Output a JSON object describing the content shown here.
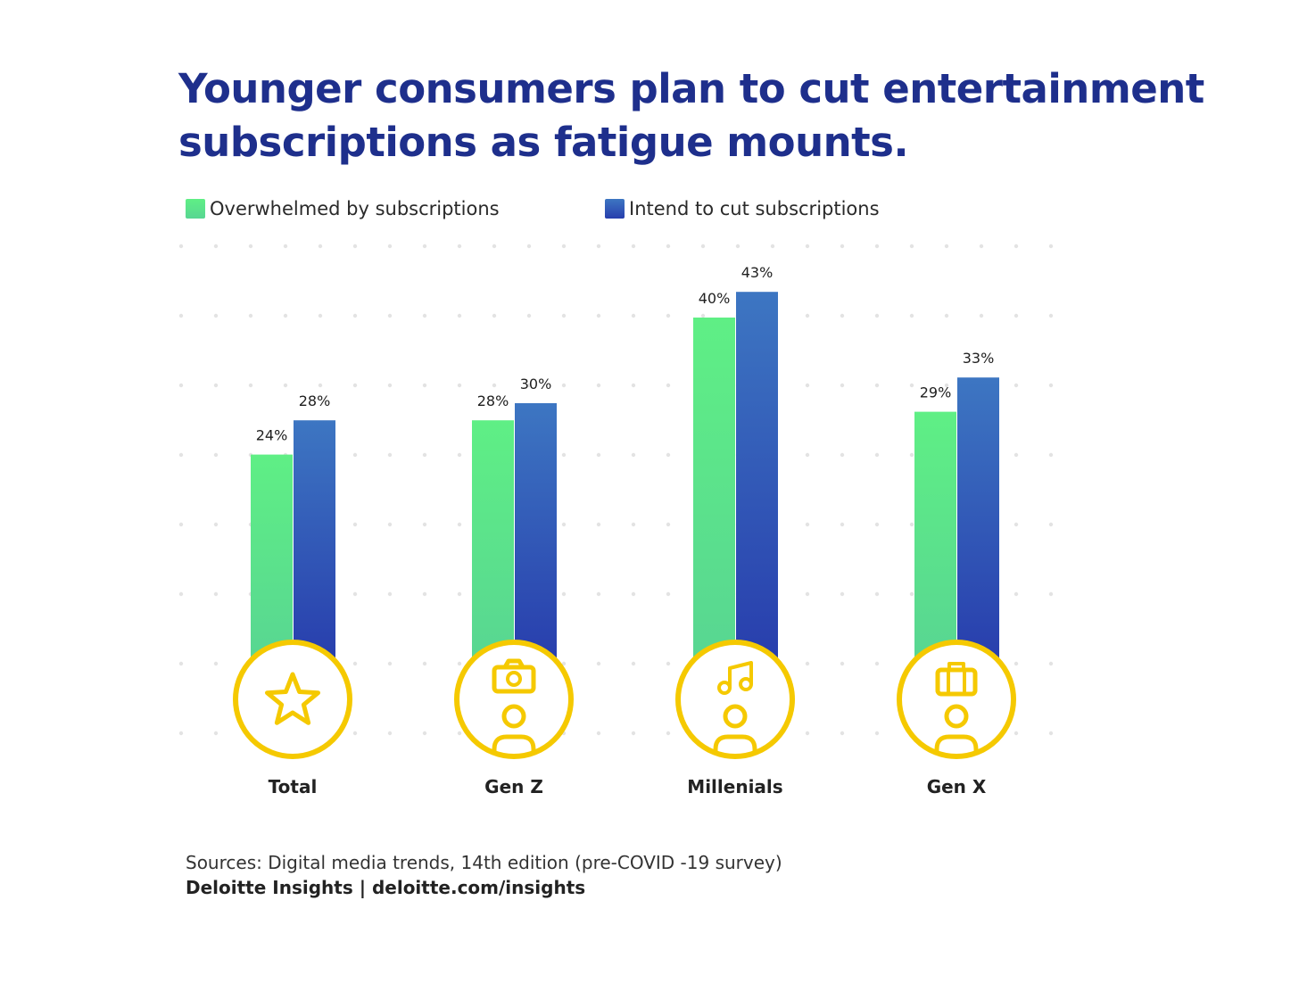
{
  "title": "Younger consumers plan to cut entertainment subscriptions as fatigue mounts.",
  "legend": [
    {
      "label": "Overwhelmed by subscriptions",
      "color": "#5ce88a"
    },
    {
      "label": "Intend to cut subscriptions",
      "color": "#3a5fc0"
    }
  ],
  "chart_data": {
    "type": "bar",
    "categories": [
      "Total",
      "Gen Z",
      "Millenials",
      "Gen X"
    ],
    "series": [
      {
        "name": "Overwhelmed by subscriptions",
        "values": [
          24,
          28,
          40,
          29
        ],
        "labels": [
          "24%",
          "28%",
          "40%",
          "29%"
        ],
        "color_top": "#5fef85",
        "color_bottom": "#58d692"
      },
      {
        "name": "Intend to cut subscriptions",
        "values": [
          28,
          30,
          43,
          33
        ],
        "labels": [
          "28%",
          "30%",
          "43%",
          "33%"
        ],
        "color_top": "#3d76c2",
        "color_bottom": "#283ead"
      }
    ],
    "icons": [
      "star-icon",
      "camera-person-icon",
      "music-person-icon",
      "briefcase-person-icon"
    ],
    "icon_color": "#f5c900",
    "grid": "dotted"
  },
  "footer": {
    "sources": "Sources: Digital media trends, 14th edition (pre-COVID -19 survey)",
    "brand": "Deloitte Insights | deloitte.com/insights"
  }
}
